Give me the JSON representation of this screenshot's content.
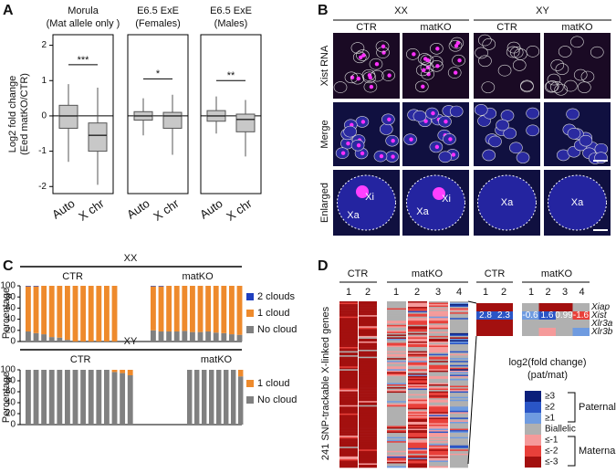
{
  "panel_a": {
    "label": "A",
    "y_label": [
      "Log2 fold change",
      "(Eed matKO/CTR)"
    ],
    "ylim": [
      -2.2,
      2.3
    ],
    "yticks": [
      -2,
      -1,
      0,
      1,
      2
    ],
    "groups": [
      {
        "title": [
          "Morula",
          "(Mat allele only )"
        ],
        "categories": [
          "Auto",
          "X chr"
        ],
        "boxes": [
          {
            "whislo": -1.3,
            "q1": -0.35,
            "med": 0,
            "q3": 0.3,
            "whishi": 0.9
          },
          {
            "whislo": -1.95,
            "q1": -1.0,
            "med": -0.55,
            "q3": -0.2,
            "whishi": 0.8
          }
        ],
        "significance": "***",
        "sig_y": 1.45
      },
      {
        "title": [
          "E6.5 ExE",
          "(Females)"
        ],
        "categories": [
          "Auto",
          "X chr"
        ],
        "boxes": [
          {
            "whislo": -0.55,
            "q1": -0.12,
            "med": 0,
            "q3": 0.12,
            "whishi": 0.5
          },
          {
            "whislo": -1.1,
            "q1": -0.35,
            "med": 0,
            "q3": 0.1,
            "whishi": 0.6
          }
        ],
        "significance": "*",
        "sig_y": 1.05
      },
      {
        "title": [
          "E6.5 ExE",
          "(Males)"
        ],
        "categories": [
          "Auto",
          "X chr"
        ],
        "boxes": [
          {
            "whislo": -0.5,
            "q1": -0.15,
            "med": 0,
            "q3": 0.15,
            "whishi": 0.55
          },
          {
            "whislo": -1.15,
            "q1": -0.45,
            "med": -0.1,
            "q3": 0.05,
            "whishi": 0.45
          }
        ],
        "significance": "**",
        "sig_y": 1.0
      }
    ]
  },
  "panel_b": {
    "label": "B",
    "headers": [
      "XX",
      "XY"
    ],
    "columns": [
      "CTR",
      "matKO",
      "CTR",
      "matKO"
    ],
    "rows": [
      "Xist RNA",
      "Merge",
      "Enlarged"
    ],
    "enlarged_labels": [
      [
        "Xi",
        "Xa"
      ],
      [
        "Xa",
        "Xi"
      ],
      [
        "Xa"
      ],
      [
        "Xa"
      ]
    ]
  },
  "panel_c": {
    "label": "C",
    "y_label": "Percentage",
    "ylim": [
      0,
      100
    ],
    "yticks": [
      0,
      20,
      40,
      60,
      80,
      100
    ],
    "charts": [
      {
        "title": "XX",
        "groups": [
          "CTR",
          "matKO"
        ],
        "series": [
          {
            "name": "No cloud",
            "color": "#808080",
            "values": [
              [
                18,
                15,
                13,
                8,
                7,
                3,
                0,
                0,
                0,
                0,
                0,
                0
              ],
              [
                20,
                18,
                18,
                18,
                19,
                17,
                17,
                18,
                16,
                15,
                13,
                12
              ]
            ]
          },
          {
            "name": "1 cloud",
            "color": "#ee8a2c",
            "values": [
              [
                81,
                84,
                87,
                92,
                93,
                97,
                100,
                100,
                100,
                100,
                100,
                100
              ],
              [
                79,
                81,
                82,
                82,
                81,
                83,
                83,
                82,
                84,
                85,
                87,
                88
              ]
            ]
          },
          {
            "name": "2 clouds",
            "color": "#1f3fbf",
            "values": [
              [
                1,
                1,
                0,
                0,
                0,
                0,
                0,
                0,
                0,
                0,
                0,
                0
              ],
              [
                1,
                1,
                0,
                0,
                0,
                0,
                0,
                0,
                0,
                0,
                0,
                0
              ]
            ]
          }
        ]
      },
      {
        "title": "XY",
        "groups": [
          "CTR",
          "matKO"
        ],
        "series": [
          {
            "name": "No cloud",
            "color": "#808080",
            "values": [
              [
                100,
                100,
                100,
                100,
                100,
                100,
                100,
                100,
                100,
                100,
                100,
                96,
                94,
                90
              ],
              [
                100,
                100,
                100,
                100,
                100,
                100,
                100,
                88
              ]
            ]
          },
          {
            "name": "1 cloud",
            "color": "#ee8a2c",
            "values": [
              [
                0,
                0,
                0,
                0,
                0,
                0,
                0,
                0,
                0,
                0,
                0,
                4,
                6,
                10
              ],
              [
                0,
                0,
                0,
                0,
                0,
                0,
                0,
                12
              ]
            ]
          }
        ]
      }
    ]
  },
  "panel_d": {
    "label": "D",
    "y_label": "241 SNP-trackable X-linked genes",
    "groups": [
      "CTR",
      "matKO"
    ],
    "ctr_columns": [
      "1",
      "2"
    ],
    "matko_columns": [
      "1",
      "2",
      "3",
      "4"
    ],
    "genes": [
      "Xiap",
      "Xist",
      "Xlr3a",
      "Xlr3b"
    ],
    "xist_ctr": [
      2.8,
      2.3
    ],
    "xist_matko": [
      -0.6,
      1.6,
      0.99,
      -1.6
    ],
    "legend_title": [
      "log2(fold change)",
      "(pat/mat)"
    ],
    "legend": [
      {
        "label": "≥3",
        "color": "#0b1f7a"
      },
      {
        "label": "≥2",
        "color": "#2a55c6"
      },
      {
        "label": "≥1",
        "color": "#6f9be0"
      },
      {
        "label": "Biallelic",
        "color": "#b0b0b0"
      },
      {
        "label": "≤-1",
        "color": "#f59a9a"
      },
      {
        "label": "≤-2",
        "color": "#e8403a"
      },
      {
        "label": "≤-3",
        "color": "#a3100f"
      }
    ],
    "legend_groups": [
      "Paternal",
      "Maternal"
    ]
  }
}
